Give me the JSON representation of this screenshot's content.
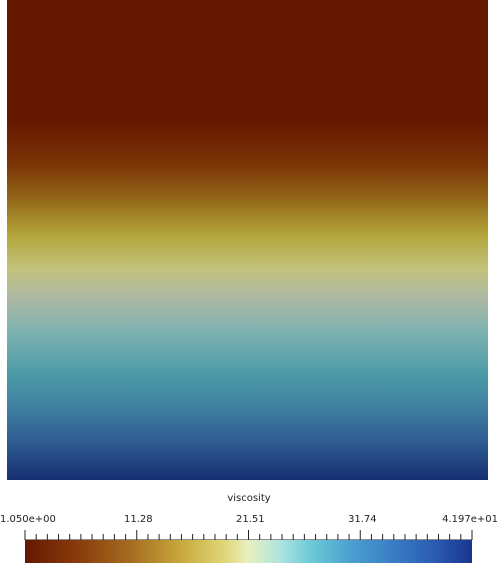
{
  "colormap": {
    "title": "viscosity",
    "labels": [
      "1.050e+00",
      "11.28",
      "21.51",
      "31.74",
      "4.197e+01"
    ],
    "range": [
      1.05,
      41.97
    ],
    "colors": {
      "low": "#661700",
      "mid": "#e8f0c0",
      "high": "#1a3590"
    }
  }
}
